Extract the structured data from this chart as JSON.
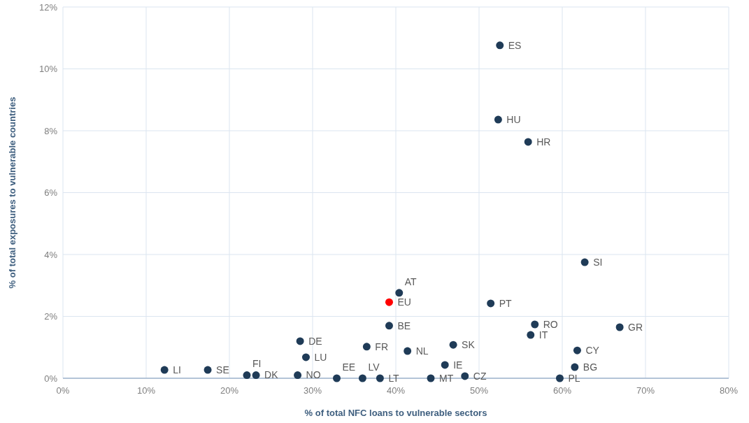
{
  "chart_data": {
    "type": "scatter",
    "xlabel": "% of total NFC loans to vulnerable sectors",
    "ylabel": "% of total exposures to vulnerable countries",
    "x": [
      12.2,
      17.4,
      22.1,
      23.2,
      28.5,
      29.2,
      28.2,
      32.9,
      36.0,
      38.1,
      36.5,
      39.2,
      39.2,
      40.4,
      41.4,
      44.2,
      45.9,
      46.9,
      48.3,
      51.4,
      52.5,
      52.3,
      55.9,
      62.7,
      56.7,
      56.2,
      66.9,
      61.8,
      61.5,
      59.7
    ],
    "values": [
      0.27,
      0.27,
      0.1,
      0.1,
      1.2,
      0.68,
      0.1,
      0.0,
      0.0,
      0.0,
      1.02,
      1.7,
      2.46,
      2.76,
      0.88,
      0.0,
      0.43,
      1.08,
      0.07,
      2.42,
      10.76,
      8.36,
      7.64,
      3.75,
      1.74,
      1.4,
      1.65,
      0.9,
      0.36,
      0.0
    ],
    "colors": [
      "#1f3b57",
      "#1f3b57",
      "#1f3b57",
      "#1f3b57",
      "#1f3b57",
      "#1f3b57",
      "#1f3b57",
      "#1f3b57",
      "#1f3b57",
      "#1f3b57",
      "#1f3b57",
      "#1f3b57",
      "#ff0000",
      "#1f3b57",
      "#1f3b57",
      "#1f3b57",
      "#1f3b57",
      "#1f3b57",
      "#1f3b57",
      "#1f3b57",
      "#1f3b57",
      "#1f3b57",
      "#1f3b57",
      "#1f3b57",
      "#1f3b57",
      "#1f3b57",
      "#1f3b57",
      "#1f3b57",
      "#1f3b57",
      "#1f3b57"
    ],
    "annotations": [
      {
        "text": "LI",
        "x": 12.2,
        "y": 0.27
      },
      {
        "text": "SE",
        "x": 17.4,
        "y": 0.27
      },
      {
        "text": "FI",
        "x": 22.1,
        "y": 0.1
      },
      {
        "text": "DK",
        "x": 23.2,
        "y": 0.1
      },
      {
        "text": "DE",
        "x": 28.5,
        "y": 1.2
      },
      {
        "text": "LU",
        "x": 29.2,
        "y": 0.68
      },
      {
        "text": "NO",
        "x": 28.2,
        "y": 0.1
      },
      {
        "text": "EE",
        "x": 32.9,
        "y": 0.0
      },
      {
        "text": "LV",
        "x": 36.0,
        "y": 0.0
      },
      {
        "text": "LT",
        "x": 38.1,
        "y": 0.0
      },
      {
        "text": "FR",
        "x": 36.5,
        "y": 1.02
      },
      {
        "text": "BE",
        "x": 39.2,
        "y": 1.7
      },
      {
        "text": "EU",
        "x": 39.2,
        "y": 2.46
      },
      {
        "text": "AT",
        "x": 40.4,
        "y": 2.76
      },
      {
        "text": "NL",
        "x": 41.4,
        "y": 0.88
      },
      {
        "text": "MT",
        "x": 44.2,
        "y": 0.0
      },
      {
        "text": "IE",
        "x": 45.9,
        "y": 0.43
      },
      {
        "text": "SK",
        "x": 46.9,
        "y": 1.08
      },
      {
        "text": "CZ",
        "x": 48.3,
        "y": 0.07
      },
      {
        "text": "PT",
        "x": 51.4,
        "y": 2.42
      },
      {
        "text": "ES",
        "x": 52.5,
        "y": 10.76
      },
      {
        "text": "HU",
        "x": 52.3,
        "y": 8.36
      },
      {
        "text": "HR",
        "x": 55.9,
        "y": 7.64
      },
      {
        "text": "SI",
        "x": 62.7,
        "y": 3.75
      },
      {
        "text": "RO",
        "x": 56.7,
        "y": 1.74
      },
      {
        "text": "IT",
        "x": 56.2,
        "y": 1.4
      },
      {
        "text": "GR",
        "x": 66.9,
        "y": 1.65
      },
      {
        "text": "CY",
        "x": 61.8,
        "y": 0.9
      },
      {
        "text": "BG",
        "x": 61.5,
        "y": 0.36
      },
      {
        "text": "PL",
        "x": 59.7,
        "y": 0.0
      }
    ],
    "xlim": [
      0,
      80
    ],
    "xticks": [
      {
        "value": 0,
        "label": "0%"
      },
      {
        "value": 10,
        "label": "10%"
      },
      {
        "value": 20,
        "label": "20%"
      },
      {
        "value": 30,
        "label": "30%"
      },
      {
        "value": 40,
        "label": "40%"
      },
      {
        "value": 50,
        "label": "50%"
      },
      {
        "value": 60,
        "label": "60%"
      },
      {
        "value": 70,
        "label": "70%"
      },
      {
        "value": 80,
        "label": "80%"
      }
    ],
    "ylim": [
      0,
      12
    ],
    "yticks": [
      {
        "value": 0,
        "label": "0%"
      },
      {
        "value": 2,
        "label": "2%"
      },
      {
        "value": 4,
        "label": "4%"
      },
      {
        "value": 6,
        "label": "6%"
      },
      {
        "value": 8,
        "label": "8%"
      },
      {
        "value": 10,
        "label": "10%"
      },
      {
        "value": 12,
        "label": "12%"
      }
    ],
    "grid": true,
    "marker": "circle"
  }
}
